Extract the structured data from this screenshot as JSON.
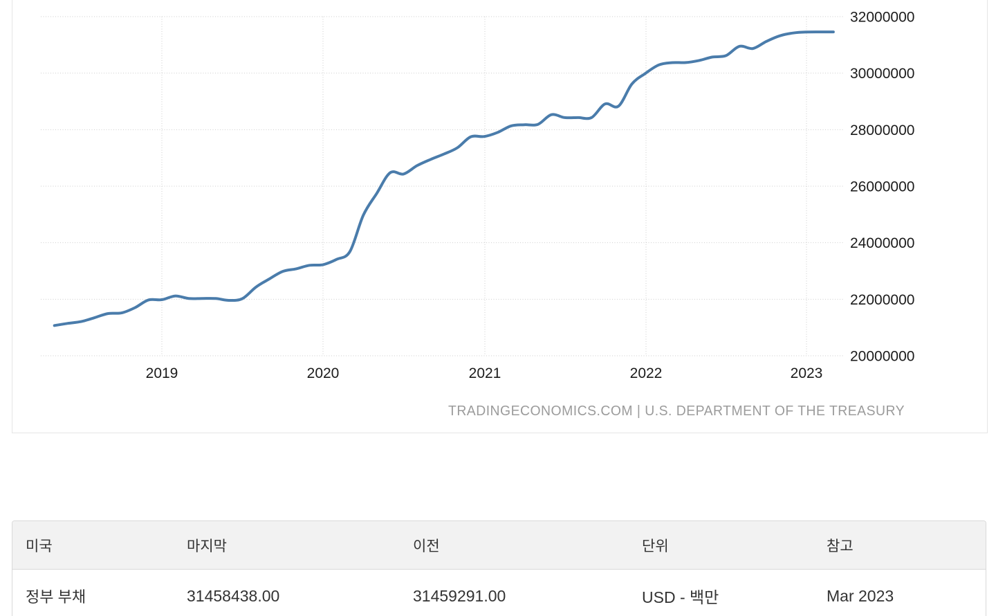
{
  "chart_data": {
    "type": "line",
    "series": [
      {
        "name": "정부 부채",
        "values": [
          21070000,
          21145000,
          21211000,
          21350000,
          21495000,
          21516000,
          21703000,
          21974000,
          21983000,
          22115000,
          22028000,
          22027000,
          22026000,
          21960000,
          22023000,
          22428000,
          22719000,
          22986000,
          23076000,
          23201000,
          23224000,
          23409000,
          23687000,
          24974000,
          25746000,
          26477000,
          26430000,
          26728000,
          26945000,
          27137000,
          27358000,
          27748000,
          27758000,
          27902000,
          28133000,
          28175000,
          28187000,
          28529000,
          28428000,
          28426000,
          28429000,
          28910000,
          28830000,
          29617000,
          29990000,
          30290000,
          30371000,
          30374000,
          30448000,
          30569000,
          30620000,
          30950000,
          30870000,
          31120000,
          31320000,
          31420000,
          31455000,
          31459291,
          31458438
        ]
      }
    ],
    "x": [
      "2018-05",
      "2018-06",
      "2018-07",
      "2018-08",
      "2018-09",
      "2018-10",
      "2018-11",
      "2018-12",
      "2019-01",
      "2019-02",
      "2019-03",
      "2019-04",
      "2019-05",
      "2019-06",
      "2019-07",
      "2019-08",
      "2019-09",
      "2019-10",
      "2019-11",
      "2019-12",
      "2020-01",
      "2020-02",
      "2020-03",
      "2020-04",
      "2020-05",
      "2020-06",
      "2020-07",
      "2020-08",
      "2020-09",
      "2020-10",
      "2020-11",
      "2020-12",
      "2021-01",
      "2021-02",
      "2021-03",
      "2021-04",
      "2021-05",
      "2021-06",
      "2021-07",
      "2021-08",
      "2021-09",
      "2021-10",
      "2021-11",
      "2021-12",
      "2022-01",
      "2022-02",
      "2022-03",
      "2022-04",
      "2022-05",
      "2022-06",
      "2022-07",
      "2022-08",
      "2022-09",
      "2022-10",
      "2022-11",
      "2022-12",
      "2023-01",
      "2023-02",
      "2023-03"
    ],
    "title": "",
    "xlabel": "",
    "ylabel": "",
    "ylim": [
      20000000,
      32000000
    ],
    "yticks": [
      "32000000",
      "30000000",
      "28000000",
      "26000000",
      "24000000",
      "22000000",
      "20000000"
    ],
    "xticks": [
      "2019",
      "2020",
      "2021",
      "2022",
      "2023"
    ],
    "grid": "dotted",
    "legend_position": "none",
    "watermark": "TRADINGECONOMICS.COM | U.S. DEPARTMENT OF THE TREASURY"
  },
  "colors": {
    "line": "#4a7cab",
    "grid": "#cdcdcd",
    "tick_label": "#1b1b1b",
    "watermark": "#9b9b9b",
    "table_header_bg": "#f2f2f2",
    "table_border": "#d9d9d9",
    "table_text": "#333333"
  },
  "table": {
    "headers": [
      "미국",
      "마지막",
      "이전",
      "단위",
      "참고"
    ],
    "rows": [
      {
        "indicator": "정부 부채",
        "last": "31458438.00",
        "previous": "31459291.00",
        "unit": "USD - 백만",
        "reference": "Mar 2023"
      }
    ]
  }
}
